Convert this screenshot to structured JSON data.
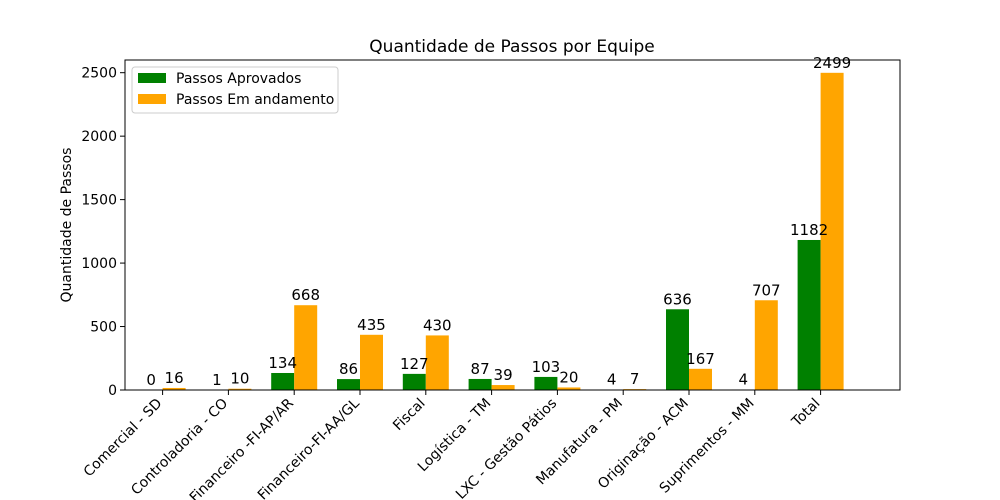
{
  "chart_data": {
    "type": "bar",
    "title": "Quantidade de Passos por Equipe",
    "xlabel": "",
    "ylabel": "Quantidade de Passos",
    "categories": [
      "Comercial - SD",
      "Controladoria - CO",
      "Financeiro -FI-AP/AR",
      "Financeiro-FI-AA/GL",
      "Fiscal",
      "Logística - TM",
      "LXC - Gestão Pátios",
      "Manufatura - PM",
      "Originação - ACM",
      "Suprimentos - MM",
      "Total"
    ],
    "series": [
      {
        "name": "Passos Aprovados",
        "color": "#008000",
        "values": [
          0,
          1,
          134,
          86,
          127,
          87,
          103,
          4,
          636,
          4,
          1182
        ]
      },
      {
        "name": "Passos Em andamento",
        "color": "#FFA500",
        "values": [
          16,
          10,
          668,
          435,
          430,
          39,
          20,
          7,
          167,
          707,
          2499
        ]
      }
    ],
    "ylim": [
      0,
      2600
    ],
    "yticks": [
      0,
      500,
      1000,
      1500,
      2000,
      2500
    ],
    "legend_position": "upper-left",
    "grid": false
  }
}
